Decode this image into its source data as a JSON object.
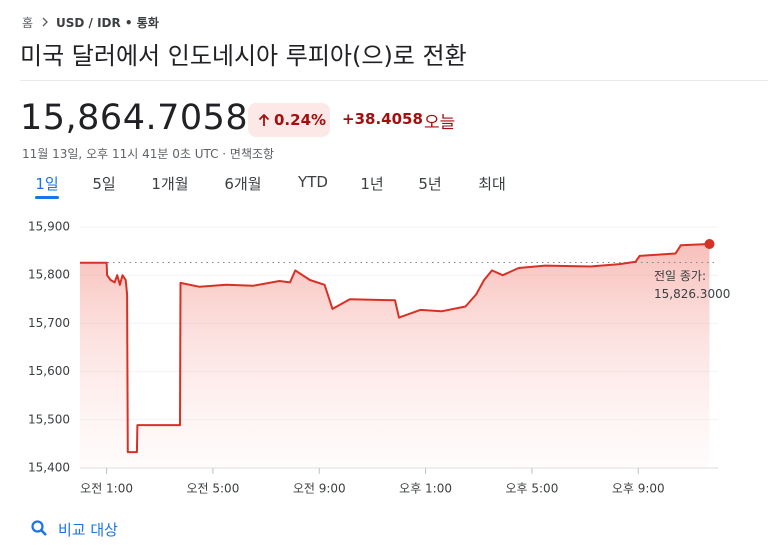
{
  "breadcrumb": {
    "home": "홈",
    "current": "USD / IDR • 통화"
  },
  "title": "미국 달러에서 인도네시아 루피아(으)로 전환",
  "price": "15,864.7058",
  "change_percent": "0.24%",
  "change_abs": "+38.4058",
  "change_period": "오늘",
  "timestamp": "11월 13일, 오후 11시 41분 0초 UTC · 면책조항",
  "tabs": [
    "1일",
    "5일",
    "1개월",
    "6개월",
    "YTD",
    "1년",
    "5년",
    "최대"
  ],
  "selected_tab": 0,
  "compare": "비교 대상",
  "chart_data": {
    "type": "line",
    "color": "#d93025",
    "x": [
      0,
      1.0,
      1.02,
      1.15,
      1.3,
      1.4,
      1.5,
      1.6,
      1.72,
      1.77,
      1.8,
      2.14,
      2.16,
      3.76,
      3.78,
      4.5,
      5.5,
      6.5,
      7.5,
      7.9,
      8.1,
      8.65,
      9.2,
      9.5,
      10.15,
      11.85,
      12.0,
      12.8,
      13.6,
      14.5,
      14.9,
      15.2,
      15.5,
      15.9,
      16.5,
      17.5,
      19.2,
      20.3,
      20.9,
      21.05,
      22.4,
      22.6,
      23.68
    ],
    "values": [
      15826,
      15826,
      15800,
      15790,
      15785,
      15800,
      15780,
      15800,
      15790,
      15760,
      15433,
      15433,
      15489,
      15489,
      15784,
      15776,
      15780,
      15778,
      15788,
      15785,
      15810,
      15790,
      15780,
      15730,
      15750,
      15748,
      15712,
      15728,
      15725,
      15735,
      15760,
      15790,
      15810,
      15800,
      15815,
      15820,
      15818,
      15823,
      15828,
      15840,
      15845,
      15862,
      15864.7
    ],
    "xlim": [
      0,
      24
    ],
    "xticks": [
      {
        "value": 1,
        "label": "오전 1:00"
      },
      {
        "value": 5,
        "label": "오전 5:00"
      },
      {
        "value": 9,
        "label": "오전 9:00"
      },
      {
        "value": 13,
        "label": "오후 1:00"
      },
      {
        "value": 17,
        "label": "오후 5:00"
      },
      {
        "value": 21,
        "label": "오후 9:00"
      }
    ],
    "ylim": [
      15400,
      15900
    ],
    "yticks": [
      {
        "value": 15400,
        "label": "15,400"
      },
      {
        "value": 15500,
        "label": "15,500"
      },
      {
        "value": 15600,
        "label": "15,600"
      },
      {
        "value": 15700,
        "label": "15,700"
      },
      {
        "value": 15800,
        "label": "15,800"
      },
      {
        "value": 15900,
        "label": "15,900"
      }
    ],
    "grid": true,
    "previous_close": {
      "value": 15826.3,
      "label": "전일 종가:",
      "value_label": "15,826.3000"
    }
  }
}
